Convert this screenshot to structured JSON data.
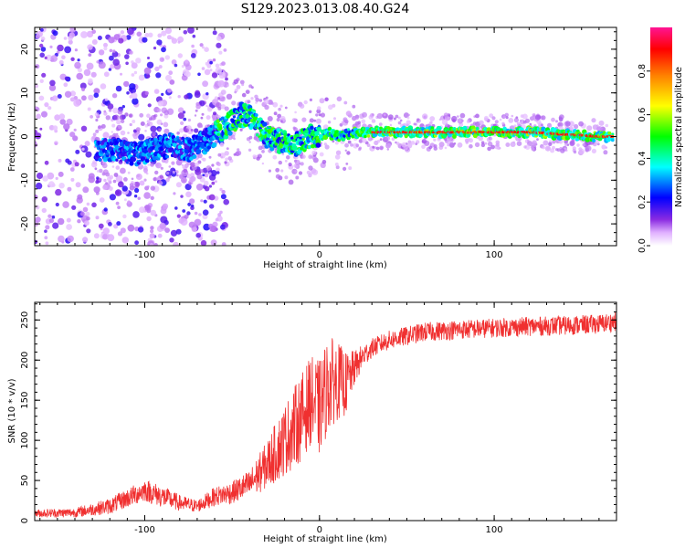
{
  "figure": {
    "title": "S129.2023.013.08.40.G24"
  },
  "colorbar": {
    "label": "Normalized spectral amplitude",
    "ticks": [
      "0.0",
      "0.2",
      "0.4",
      "0.6",
      "0.8"
    ],
    "tick_values": [
      0.0,
      0.2,
      0.4,
      0.6,
      0.8
    ],
    "range": [
      0,
      1
    ],
    "colormap": [
      "#ffffff",
      "#e0b0ff",
      "#8a2be2",
      "#0000ff",
      "#00ffff",
      "#00ff00",
      "#ffff00",
      "#ff8000",
      "#ff0000",
      "#ff1493"
    ]
  },
  "chart_data": [
    {
      "type": "heatmap",
      "xlabel": "Height of straight line (km)",
      "ylabel": "Frequency (Hz)",
      "xlim": [
        -163,
        170
      ],
      "ylim": [
        -25,
        25
      ],
      "xticks": [
        "-100",
        "0",
        "100"
      ],
      "xtick_values": [
        -100,
        0,
        100
      ],
      "yticks": [
        "-20",
        "-10",
        "0",
        "10",
        "20"
      ],
      "ytick_values": [
        -20,
        -10,
        0,
        10,
        20
      ],
      "ridge": {
        "x": [
          -125,
          -115,
          -105,
          -95,
          -85,
          -75,
          -65,
          -55,
          -45,
          -38,
          -30,
          -25,
          -20,
          -15,
          -10,
          -5,
          0,
          5,
          10,
          20,
          40,
          60,
          80,
          100,
          120,
          140,
          160,
          170
        ],
        "frequency": [
          -3,
          -3,
          -4,
          -3,
          -2,
          -3,
          -1,
          2,
          5,
          4,
          0,
          -1,
          -1,
          -2,
          -1,
          0,
          0,
          1,
          0,
          1,
          1,
          1,
          1,
          1,
          1,
          0.5,
          0,
          0
        ]
      }
    },
    {
      "type": "line",
      "xlabel": "Height of straight line (km)",
      "ylabel": "SNR (10 * v/v)",
      "xlim": [
        -163,
        170
      ],
      "ylim": [
        0,
        272
      ],
      "xticks": [
        "-100",
        "0",
        "100"
      ],
      "xtick_values": [
        -100,
        0,
        100
      ],
      "yticks": [
        "0",
        "50",
        "100",
        "150",
        "200",
        "250"
      ],
      "ytick_values": [
        0,
        50,
        100,
        150,
        200,
        250
      ],
      "color": "#f03030",
      "envelope": {
        "x": [
          -163,
          -140,
          -120,
          -100,
          -90,
          -80,
          -70,
          -60,
          -50,
          -40,
          -30,
          -20,
          -10,
          -5,
          0,
          5,
          10,
          15,
          20,
          25,
          30,
          40,
          50,
          60,
          80,
          100,
          120,
          140,
          160,
          170
        ],
        "mean": [
          9,
          10,
          18,
          38,
          30,
          22,
          18,
          30,
          35,
          45,
          70,
          100,
          130,
          150,
          140,
          170,
          175,
          170,
          190,
          205,
          215,
          225,
          230,
          235,
          238,
          240,
          242,
          243,
          245,
          248
        ],
        "noise": [
          5,
          6,
          10,
          14,
          14,
          10,
          8,
          12,
          14,
          18,
          30,
          45,
          55,
          55,
          60,
          60,
          50,
          40,
          22,
          15,
          12,
          12,
          12,
          12,
          12,
          12,
          12,
          12,
          12,
          12
        ]
      }
    }
  ]
}
